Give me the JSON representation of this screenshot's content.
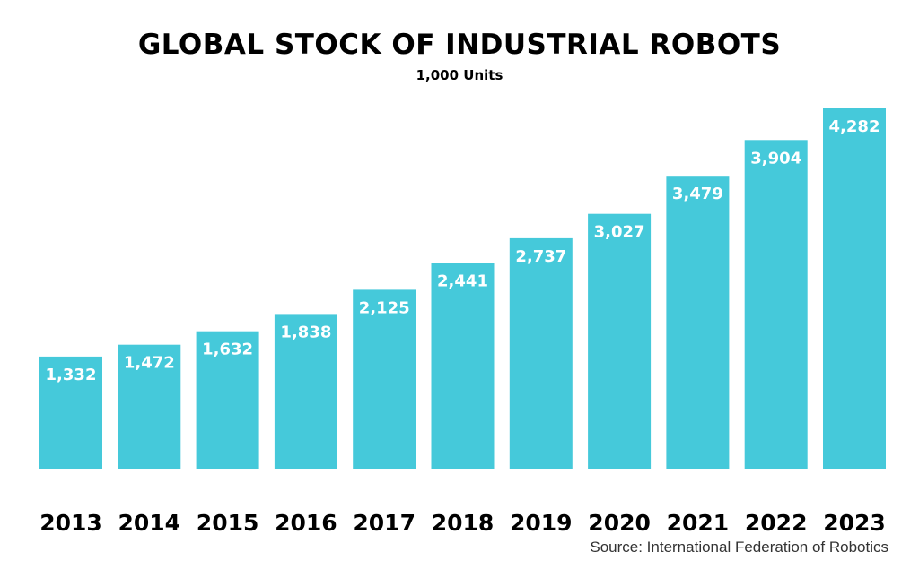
{
  "chart_data": {
    "type": "bar",
    "title": "GLOBAL STOCK OF INDUSTRIAL ROBOTS",
    "subtitle": "1,000 Units",
    "categories": [
      "2013",
      "2014",
      "2015",
      "2016",
      "2017",
      "2018",
      "2019",
      "2020",
      "2021",
      "2022",
      "2023"
    ],
    "values": [
      1332,
      1472,
      1632,
      1838,
      2125,
      2441,
      2737,
      3027,
      3479,
      3904,
      4282
    ],
    "value_labels": [
      "1,332",
      "1,472",
      "1,632",
      "1,838",
      "2,125",
      "2,441",
      "2,737",
      "3,027",
      "3,479",
      "3,904",
      "4,282"
    ],
    "ylim": [
      0,
      4450
    ],
    "grid": false,
    "legend": "none",
    "source": "Source: International Federation of Robotics",
    "colors": {
      "bar": "#45c9da",
      "label": "#ffffff",
      "text": "#000000"
    }
  }
}
